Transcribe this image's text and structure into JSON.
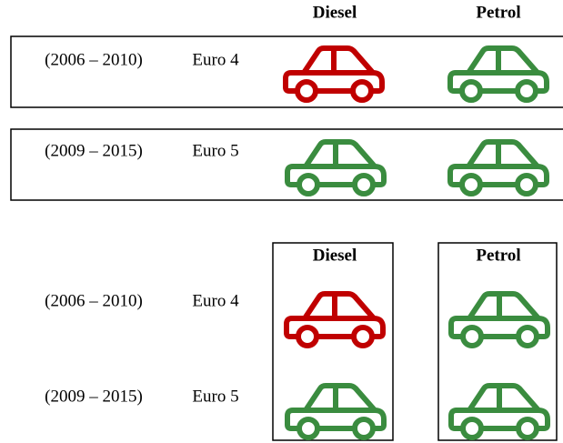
{
  "row_layout": {
    "columns": [
      "Diesel",
      "Petrol"
    ],
    "rows": [
      {
        "period": "(2006 – 2010)",
        "standard": "Euro 4",
        "colors": [
          "#c00000",
          "#3a8c3f"
        ]
      },
      {
        "period": "(2009 – 2015)",
        "standard": "Euro 5",
        "colors": [
          "#3a8c3f",
          "#3a8c3f"
        ]
      }
    ]
  },
  "column_layout": {
    "columns": [
      "Diesel",
      "Petrol"
    ],
    "rows": [
      {
        "period": "(2006 – 2010)",
        "standard": "Euro 4",
        "colors": [
          "#c00000",
          "#3a8c3f"
        ]
      },
      {
        "period": "(2009 – 2015)",
        "standard": "Euro 5",
        "colors": [
          "#3a8c3f",
          "#3a8c3f"
        ]
      }
    ]
  }
}
